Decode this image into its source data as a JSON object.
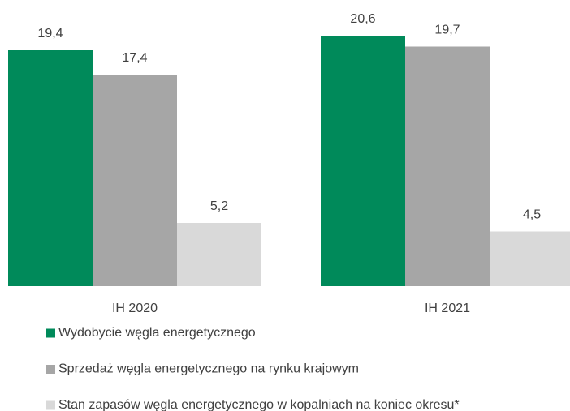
{
  "chart_data": {
    "type": "bar",
    "categories": [
      "IH 2020",
      "IH 2021"
    ],
    "series": [
      {
        "name": "Wydobycie węgla energetycznego",
        "color": "#008a5a",
        "values": [
          19.4,
          20.6
        ],
        "value_labels": [
          "19,4",
          "20,6"
        ]
      },
      {
        "name": "Sprzedaż węgla energetycznego na rynku krajowym",
        "color": "#a6a6a6",
        "values": [
          17.4,
          19.7
        ],
        "value_labels": [
          "17,4",
          "19,7"
        ]
      },
      {
        "name": "Stan zapasów węgla energetycznego w kopalniach na koniec okresu*",
        "color": "#d9d9d9",
        "values": [
          5.2,
          4.5
        ],
        "value_labels": [
          "5,2",
          "4,5"
        ]
      }
    ],
    "legend": "bottom"
  }
}
